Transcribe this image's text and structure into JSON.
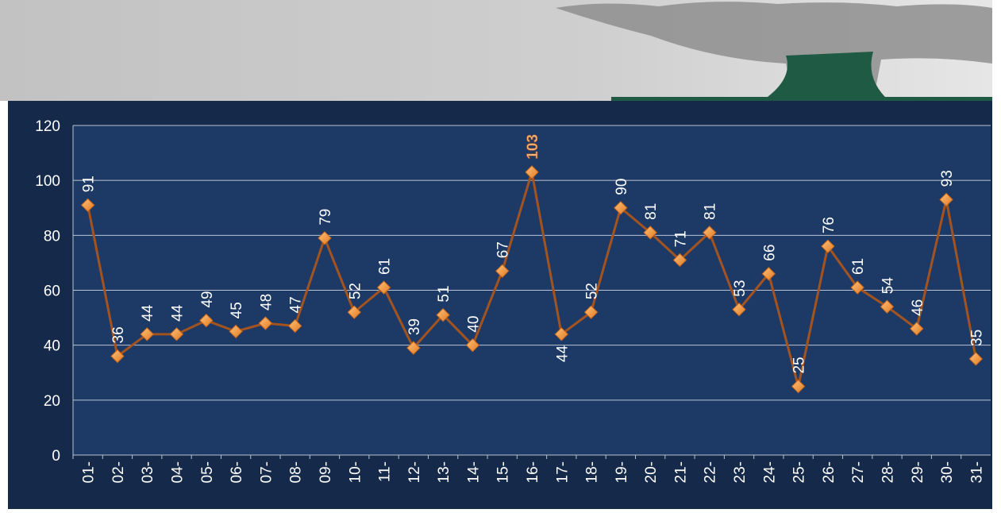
{
  "chart_data": {
    "type": "line",
    "categories": [
      "01-",
      "02-",
      "03-",
      "04-",
      "05-",
      "06-",
      "07-",
      "08-",
      "09-",
      "10-",
      "11-",
      "12-",
      "13-",
      "14-",
      "15-",
      "16-",
      "17-",
      "18-",
      "19-",
      "20-",
      "21-",
      "22-",
      "23-",
      "24-",
      "25-",
      "26-",
      "27-",
      "28-",
      "29-",
      "30-",
      "31-"
    ],
    "series": [
      {
        "color": "#a3531f",
        "values": [
          91,
          36,
          44,
          44,
          49,
          45,
          48,
          47,
          79,
          52,
          61,
          39,
          51,
          40,
          67,
          103,
          44,
          52,
          90,
          81,
          71,
          81,
          53,
          66,
          25,
          76,
          61,
          54,
          46,
          93,
          35
        ]
      }
    ],
    "ylim": [
      0,
      120
    ],
    "yticks": [
      0,
      20,
      40,
      60,
      80,
      100,
      120
    ],
    "grid": true
  }
}
